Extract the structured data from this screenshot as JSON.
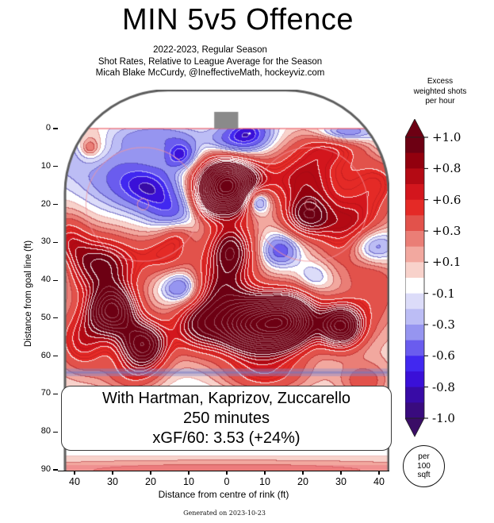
{
  "title": "MIN 5v5 Offence",
  "subtitles": [
    "2022-2023, Regular Season",
    "Shot Rates, Relative to League Average for the Season",
    "Micah Blake McCurdy, @IneffectiveMath, hockeyviz.com"
  ],
  "footer": "Generated on 2023-10-23",
  "infobox": {
    "players": "With Hartman, Kaprizov, Zuccarello",
    "minutes": "250 minutes",
    "xgf": "xGF/60: 3.53 (+24%)"
  },
  "axes": {
    "xlabel": "Distance from centre of rink (ft)",
    "ylabel": "Distance from goal line (ft)",
    "ytick_values": [
      0,
      10,
      20,
      30,
      40,
      50,
      60,
      70,
      80,
      90
    ],
    "ytick_labels": [
      "0",
      "10",
      "20",
      "30",
      "40",
      "50",
      "60",
      "70",
      "80",
      "90"
    ],
    "xtick_values": [
      -40,
      -30,
      -20,
      -10,
      0,
      10,
      20,
      30,
      40
    ],
    "xtick_labels": [
      "40",
      "30",
      "20",
      "10",
      "0",
      "10",
      "20",
      "30",
      "40"
    ]
  },
  "colorbar": {
    "header_lines": [
      "Excess",
      "weighted shots",
      "per hour"
    ],
    "tick_labels": [
      "+1.0",
      "+0.8",
      "+0.6",
      "+0.3",
      "+0.1",
      "-0.1",
      "-0.3",
      "-0.6",
      "-0.8",
      "-1.0"
    ],
    "unit_lines": [
      "per",
      "100",
      "sqft"
    ]
  },
  "chart_data": {
    "type": "contour_heatmap",
    "title": "MIN 5v5 Offence",
    "x_axis": "Distance from centre of rink (ft), -44 to 43",
    "y_axis": "Distance from goal line (ft), 0 to 90",
    "value_label": "Excess weighted shots per hour per 100 sqft",
    "levels": [
      1.0,
      0.9,
      0.8,
      0.7,
      0.6,
      0.45,
      0.3,
      0.2,
      0.1,
      0,
      -0.1,
      -0.2,
      -0.3,
      -0.45,
      -0.6,
      -0.7,
      -0.8,
      -0.9,
      -1.0
    ],
    "band_colors": [
      "#6d0013",
      "#92000e",
      "#b40a14",
      "#d3161d",
      "#e42a26",
      "#e2524b",
      "#ea7e76",
      "#f2a89f",
      "#f8d2cb",
      "#ffffff",
      "#dcdcf9",
      "#bcbdf5",
      "#9695f0",
      "#6a5cee",
      "#4128f0",
      "#3a10d8",
      "#380ba6",
      "#390b7e"
    ],
    "over_color": "#6d0013",
    "under_color": "#3a0d66",
    "sources": [
      [
        0,
        15,
        5.5,
        5,
        2.5
      ],
      [
        -5,
        20,
        3,
        3,
        0.4
      ],
      [
        1,
        32,
        4.5,
        5,
        1.05
      ],
      [
        20,
        13,
        8,
        5,
        0.7
      ],
      [
        21,
        23,
        4.5,
        4,
        0.95
      ],
      [
        33,
        27,
        6,
        7,
        0.8
      ],
      [
        40,
        14,
        5,
        5,
        0.45
      ],
      [
        27,
        5,
        7,
        3.5,
        0.5
      ],
      [
        -36,
        5,
        3.5,
        3.5,
        0.42
      ],
      [
        -36,
        5,
        1.3,
        1.3,
        0.22
      ],
      [
        -33,
        36,
        7,
        5.5,
        1.0
      ],
      [
        -42,
        29,
        4,
        5,
        0.5
      ],
      [
        -30,
        48,
        4.5,
        4.5,
        1.5
      ],
      [
        -22,
        57,
        4.5,
        4.5,
        1.4
      ],
      [
        -38,
        56,
        5,
        6,
        0.65
      ],
      [
        8,
        52,
        8,
        5.5,
        2.1
      ],
      [
        17,
        50,
        5,
        5,
        1.1
      ],
      [
        30,
        52,
        4,
        4,
        1.55
      ],
      [
        -8,
        52,
        5,
        5,
        0.75
      ],
      [
        -2,
        42,
        6,
        5,
        0.65
      ],
      [
        -16,
        33,
        5,
        4,
        0.5
      ],
      [
        39,
        43,
        5,
        8,
        0.38
      ],
      [
        10,
        66,
        9,
        4,
        0.55
      ],
      [
        -25,
        66,
        6,
        4,
        0.4
      ],
      [
        36,
        67,
        5,
        4,
        0.45
      ],
      [
        0,
        90,
        45,
        2.4,
        0.32
      ],
      [
        -13,
        28,
        3,
        2.5,
        0.3
      ],
      [
        6,
        1,
        4.5,
        3.5,
        -0.65
      ],
      [
        1,
        4,
        5,
        3,
        -0.45
      ],
      [
        -12,
        7,
        3,
        2.5,
        -0.7
      ],
      [
        -20,
        16,
        6,
        4,
        -0.55
      ],
      [
        -14,
        22,
        5,
        3.5,
        -0.45
      ],
      [
        -28,
        12,
        9,
        6,
        -0.42
      ],
      [
        -18,
        2,
        8,
        2.5,
        -0.35
      ],
      [
        -41,
        6,
        6,
        4,
        -0.3
      ],
      [
        8,
        19,
        2.4,
        2.4,
        -0.95
      ],
      [
        31,
        1,
        5,
        1.8,
        -0.6
      ],
      [
        38,
        31,
        4.5,
        3.5,
        -0.85
      ],
      [
        -45,
        37,
        3,
        4,
        -0.4
      ],
      [
        14,
        32,
        3.5,
        3,
        -0.6
      ],
      [
        -12,
        42,
        3.5,
        3,
        -0.7
      ],
      [
        0,
        72,
        30,
        5,
        -0.22
      ],
      [
        0,
        82,
        45,
        6,
        -0.12
      ],
      [
        23,
        39,
        3,
        2.5,
        -0.3
      ],
      [
        44,
        4,
        4,
        3,
        -0.25
      ]
    ],
    "rink": {
      "half_width": 42.5,
      "top": -10.1,
      "corner_radius": 27,
      "goal_line_y": 0,
      "blue_line_y": 64.3,
      "center_line_y": 89.4,
      "net": {
        "x": -0.15,
        "width": 6.3,
        "depth": 4.4
      },
      "faceoff_circles": [
        [
          -22,
          20
        ],
        [
          22,
          20
        ]
      ],
      "faceoff_circle_radius": 15
    }
  }
}
